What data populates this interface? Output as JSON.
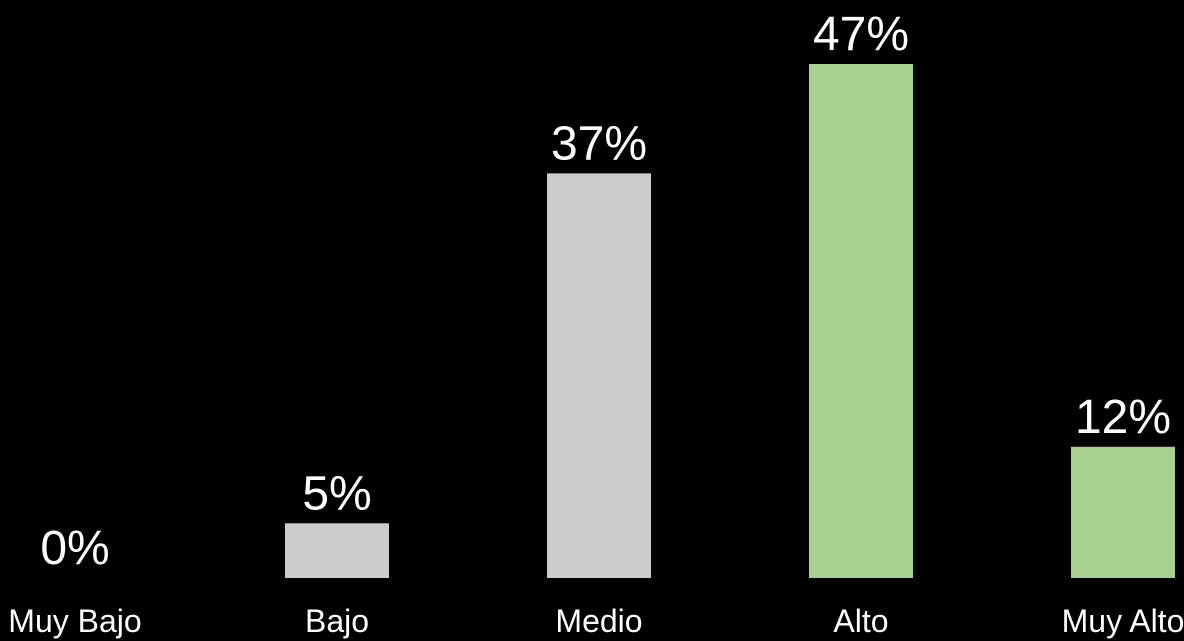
{
  "chart_data": {
    "type": "bar",
    "categories": [
      "Muy Bajo",
      "Bajo",
      "Medio",
      "Alto",
      "Muy Alto"
    ],
    "values": [
      0,
      5,
      37,
      47,
      12
    ],
    "value_labels": [
      "0%",
      "5%",
      "37%",
      "47%",
      "12%"
    ],
    "bar_colors": [
      "#cccccc",
      "#cccccc",
      "#cccccc",
      "#a9d18e",
      "#a9d18e"
    ],
    "background": "#000000",
    "text_color": "#ffffff",
    "grid": false,
    "legend": "none",
    "ylim": [
      0,
      47
    ]
  }
}
